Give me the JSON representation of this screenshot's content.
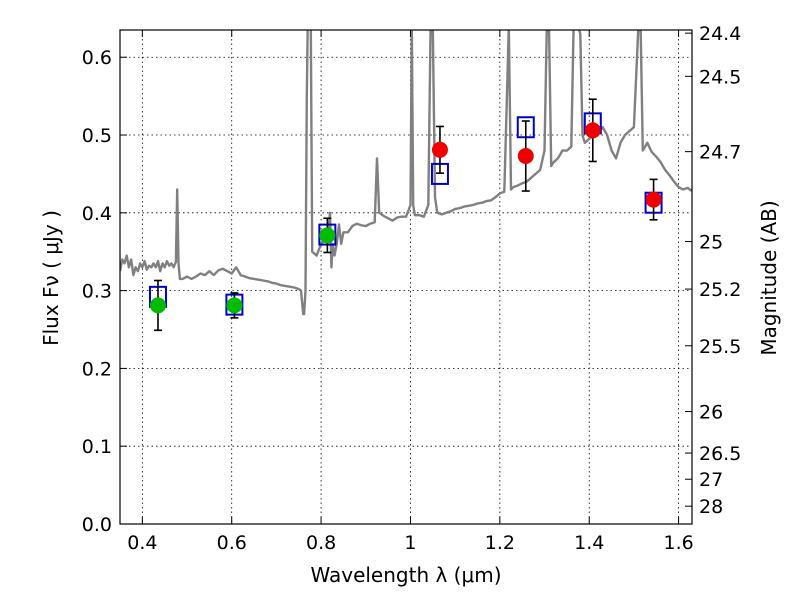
{
  "chart_data": {
    "type": "scatter",
    "title": "",
    "xlabel": "Wavelength  λ (μm)",
    "ylabel": "Flux  Fν  ( μJy )",
    "y2label": "Magnitude (AB)",
    "xlim": [
      0.35,
      1.63
    ],
    "ylim": [
      0.0,
      0.635
    ],
    "x_ticks": [
      0.4,
      0.6,
      0.8,
      1.0,
      1.2,
      1.4,
      1.6
    ],
    "x_tick_labels": [
      "0.4",
      "0.6",
      "0.8",
      "1",
      "1.2",
      "1.4",
      "1.6"
    ],
    "y_ticks": [
      0.0,
      0.1,
      0.2,
      0.3,
      0.4,
      0.5,
      0.6
    ],
    "y_tick_labels": [
      "0.0",
      "0.1",
      "0.2",
      "0.3",
      "0.4",
      "0.5",
      "0.6"
    ],
    "y2_ticks": [
      24.4,
      24.5,
      24.7,
      25,
      25.2,
      25.5,
      26,
      26.5,
      27,
      28
    ],
    "y2_tick_labels": [
      "24.4",
      "24.5",
      "24.7",
      "25",
      "25.2",
      "25.5",
      "26",
      "26.5",
      "27",
      "28"
    ],
    "grid": true,
    "colors": {
      "model": "#808080",
      "optical": "#00bb00",
      "nir": "#ee0000",
      "model_box": "#0000cc",
      "errorbar": "#000000"
    },
    "series": [
      {
        "marker": "green-circle",
        "x": [
          0.435,
          0.606,
          0.814
        ],
        "y": [
          0.281,
          0.281,
          0.371
        ],
        "err": [
          0.032,
          0.016,
          0.022
        ]
      },
      {
        "marker": "red-circle",
        "x": [
          1.066,
          1.258,
          1.408,
          1.544
        ],
        "y": [
          0.481,
          0.473,
          0.506,
          0.417
        ],
        "err": [
          0.03,
          0.045,
          0.04,
          0.026
        ]
      },
      {
        "marker": "blue-open-square",
        "x": [
          0.435,
          0.606,
          0.814,
          1.066,
          1.258,
          1.408,
          1.544
        ],
        "y": [
          0.292,
          0.282,
          0.372,
          0.45,
          0.51,
          0.515,
          0.413
        ]
      }
    ],
    "model_spectrum": {
      "x": [
        0.35,
        0.355,
        0.36,
        0.365,
        0.37,
        0.375,
        0.38,
        0.385,
        0.39,
        0.395,
        0.4,
        0.405,
        0.41,
        0.415,
        0.42,
        0.425,
        0.43,
        0.435,
        0.44,
        0.445,
        0.45,
        0.455,
        0.46,
        0.465,
        0.47,
        0.475,
        0.478,
        0.481,
        0.484,
        0.49,
        0.5,
        0.51,
        0.52,
        0.53,
        0.54,
        0.55,
        0.56,
        0.57,
        0.58,
        0.59,
        0.6,
        0.61,
        0.62,
        0.63,
        0.64,
        0.65,
        0.66,
        0.67,
        0.68,
        0.69,
        0.7,
        0.71,
        0.72,
        0.73,
        0.74,
        0.75,
        0.755,
        0.76,
        0.762,
        0.765,
        0.768,
        0.77,
        0.773,
        0.777,
        0.78,
        0.79,
        0.8,
        0.81,
        0.815,
        0.82,
        0.823,
        0.826,
        0.83,
        0.835,
        0.84,
        0.845,
        0.85,
        0.86,
        0.87,
        0.88,
        0.89,
        0.9,
        0.91,
        0.92,
        0.925,
        0.93,
        0.94,
        0.95,
        0.96,
        0.97,
        0.98,
        0.99,
        1.0,
        1.003,
        1.006,
        1.01,
        1.02,
        1.03,
        1.04,
        1.045,
        1.05,
        1.055,
        1.06,
        1.07,
        1.08,
        1.09,
        1.1,
        1.11,
        1.12,
        1.13,
        1.14,
        1.15,
        1.16,
        1.17,
        1.18,
        1.19,
        1.2,
        1.21,
        1.215,
        1.22,
        1.225,
        1.23,
        1.24,
        1.25,
        1.26,
        1.27,
        1.28,
        1.29,
        1.3,
        1.305,
        1.31,
        1.315,
        1.32,
        1.33,
        1.34,
        1.35,
        1.36,
        1.365,
        1.37,
        1.375,
        1.38,
        1.385,
        1.39,
        1.4,
        1.41,
        1.42,
        1.43,
        1.44,
        1.45,
        1.46,
        1.47,
        1.48,
        1.49,
        1.5,
        1.51,
        1.515,
        1.52,
        1.525,
        1.53,
        1.54,
        1.55,
        1.56,
        1.57,
        1.58,
        1.59,
        1.6,
        1.61,
        1.62,
        1.63
      ],
      "y": [
        0.325,
        0.34,
        0.335,
        0.345,
        0.33,
        0.34,
        0.32,
        0.33,
        0.325,
        0.335,
        0.33,
        0.338,
        0.327,
        0.332,
        0.33,
        0.335,
        0.33,
        0.338,
        0.325,
        0.335,
        0.33,
        0.338,
        0.332,
        0.335,
        0.33,
        0.337,
        0.43,
        0.335,
        0.315,
        0.315,
        0.318,
        0.315,
        0.318,
        0.322,
        0.32,
        0.325,
        0.32,
        0.326,
        0.328,
        0.325,
        0.322,
        0.33,
        0.32,
        0.318,
        0.316,
        0.315,
        0.314,
        0.313,
        0.312,
        0.31,
        0.309,
        0.307,
        0.306,
        0.305,
        0.304,
        0.302,
        0.3,
        0.27,
        0.27,
        0.3,
        0.55,
        0.64,
        0.64,
        0.64,
        0.35,
        0.345,
        0.36,
        0.365,
        0.37,
        0.4,
        0.33,
        0.36,
        0.345,
        0.36,
        0.385,
        0.36,
        0.375,
        0.375,
        0.383,
        0.386,
        0.384,
        0.383,
        0.386,
        0.388,
        0.47,
        0.4,
        0.396,
        0.393,
        0.39,
        0.394,
        0.395,
        0.395,
        0.41,
        0.64,
        0.41,
        0.397,
        0.397,
        0.395,
        0.41,
        0.64,
        0.64,
        0.42,
        0.4,
        0.398,
        0.4,
        0.402,
        0.405,
        0.406,
        0.408,
        0.409,
        0.41,
        0.412,
        0.413,
        0.415,
        0.416,
        0.42,
        0.425,
        0.427,
        0.53,
        0.64,
        0.43,
        0.433,
        0.435,
        0.438,
        0.44,
        0.445,
        0.45,
        0.455,
        0.48,
        0.64,
        0.64,
        0.46,
        0.465,
        0.47,
        0.48,
        0.48,
        0.485,
        0.64,
        0.64,
        0.64,
        0.63,
        0.5,
        0.49,
        0.495,
        0.5,
        0.505,
        0.51,
        0.5,
        0.48,
        0.47,
        0.49,
        0.5,
        0.505,
        0.51,
        0.64,
        0.64,
        0.48,
        0.485,
        0.49,
        0.478,
        0.472,
        0.465,
        0.455,
        0.448,
        0.44,
        0.433,
        0.43,
        0.432,
        0.428
      ]
    }
  }
}
